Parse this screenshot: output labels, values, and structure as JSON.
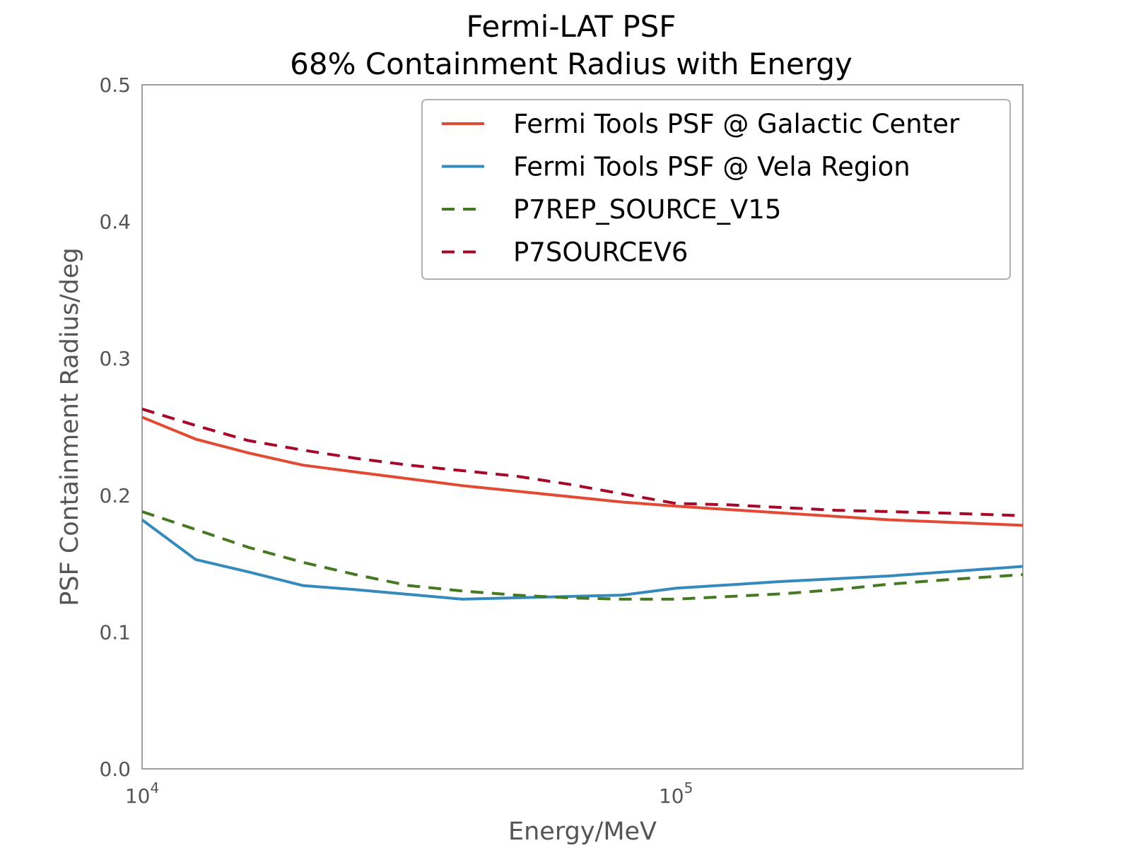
{
  "chart_data": {
    "type": "line",
    "title": [
      "Fermi-LAT PSF",
      "68% Containment Radius with Energy"
    ],
    "xlabel": "Energy/MeV",
    "ylabel": "PSF Containment Radius/deg",
    "xscale": "log",
    "xlim": [
      10000,
      446684
    ],
    "ylim": [
      0,
      0.5
    ],
    "xticks": [
      {
        "base": "10",
        "exp": "4",
        "value": 10000
      },
      {
        "base": "10",
        "exp": "5",
        "value": 100000
      }
    ],
    "yticks": [
      "0.0",
      "0.1",
      "0.2",
      "0.3",
      "0.4",
      "0.5"
    ],
    "grid": false,
    "legend_position": "top-right",
    "series": [
      {
        "name": "Fermi Tools PSF @ Galactic Center",
        "color": "#E24A33",
        "style": "solid",
        "x": [
          10000,
          12600,
          15800,
          20000,
          25100,
          39800,
          79400,
          100000,
          158500,
          251200,
          446700
        ],
        "y": [
          0.257,
          0.241,
          0.231,
          0.222,
          0.217,
          0.207,
          0.195,
          0.192,
          0.187,
          0.182,
          0.178
        ]
      },
      {
        "name": "Fermi Tools PSF @ Vela Region",
        "color": "#348ABD",
        "style": "solid",
        "x": [
          10000,
          12600,
          15800,
          20000,
          25100,
          39800,
          79400,
          100000,
          158500,
          251200,
          446700
        ],
        "y": [
          0.182,
          0.153,
          0.144,
          0.134,
          0.131,
          0.124,
          0.127,
          0.132,
          0.137,
          0.141,
          0.148
        ]
      },
      {
        "name": "P7REP_SOURCE_V15",
        "color": "#467821",
        "style": "dashed",
        "x": [
          10000,
          12600,
          15800,
          20000,
          25100,
          31600,
          39800,
          50100,
          63100,
          79400,
          100000,
          125900,
          158500,
          199500,
          251200,
          316200,
          446700
        ],
        "y": [
          0.188,
          0.175,
          0.162,
          0.151,
          0.142,
          0.134,
          0.13,
          0.127,
          0.125,
          0.124,
          0.124,
          0.126,
          0.128,
          0.131,
          0.135,
          0.138,
          0.142
        ]
      },
      {
        "name": "P7SOURCEV6",
        "color": "#A60628",
        "style": "dashed",
        "x": [
          10000,
          12600,
          15800,
          20000,
          25100,
          31600,
          39800,
          50100,
          63100,
          79400,
          100000,
          125900,
          158500,
          199500,
          251200,
          316200,
          446700
        ],
        "y": [
          0.263,
          0.251,
          0.24,
          0.233,
          0.227,
          0.222,
          0.218,
          0.214,
          0.208,
          0.201,
          0.194,
          0.193,
          0.191,
          0.189,
          0.188,
          0.187,
          0.185
        ]
      }
    ]
  }
}
